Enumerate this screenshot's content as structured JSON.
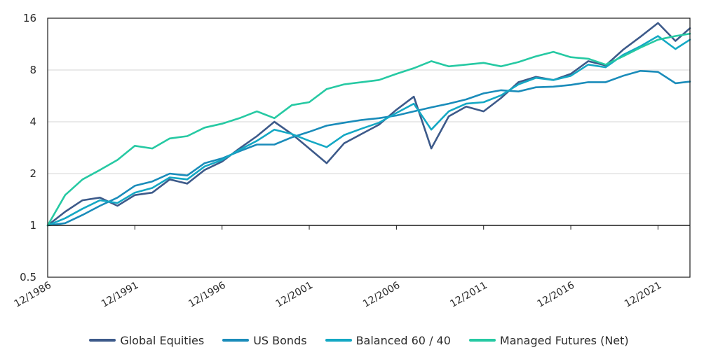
{
  "chart_data": {
    "type": "line",
    "title": "",
    "xlabel": "",
    "ylabel": "",
    "yscale": "log2",
    "ylim": [
      0.5,
      16
    ],
    "xlim": [
      "12/1986",
      "10/2023"
    ],
    "y_ticks": [
      "0.5",
      "1",
      "2",
      "4",
      "8",
      "16"
    ],
    "x_ticks": [
      "12/1986",
      "12/1991",
      "12/1996",
      "12/2001",
      "12/2006",
      "12/2011",
      "12/2016",
      "12/2021"
    ],
    "grid": "horizontal",
    "legend": "bottom",
    "x": [
      "12/1986",
      "12/1987",
      "12/1988",
      "12/1989",
      "12/1990",
      "12/1991",
      "12/1992",
      "12/1993",
      "12/1994",
      "12/1995",
      "12/1996",
      "12/1997",
      "12/1998",
      "12/1999",
      "12/2000",
      "12/2001",
      "12/2002",
      "12/2003",
      "12/2004",
      "12/2005",
      "12/2006",
      "12/2007",
      "12/2008",
      "12/2009",
      "12/2010",
      "12/2011",
      "12/2012",
      "12/2013",
      "12/2014",
      "12/2015",
      "12/2016",
      "12/2017",
      "12/2018",
      "12/2019",
      "12/2020",
      "12/2021",
      "12/2022",
      "10/2023"
    ],
    "series": [
      {
        "name": "Global Equities",
        "color": "#3d5a8a",
        "values": [
          1.0,
          1.2,
          1.4,
          1.45,
          1.3,
          1.5,
          1.55,
          1.85,
          1.75,
          2.1,
          2.35,
          2.8,
          3.3,
          4.0,
          3.4,
          2.8,
          2.3,
          3.0,
          3.4,
          3.85,
          4.7,
          5.6,
          2.8,
          4.3,
          4.9,
          4.6,
          5.5,
          6.8,
          7.3,
          7.0,
          7.6,
          9.0,
          8.5,
          10.5,
          12.5,
          15.0,
          11.8,
          14.0
        ]
      },
      {
        "name": "US Bonds",
        "color": "#1a8cba",
        "values": [
          1.0,
          1.03,
          1.15,
          1.3,
          1.45,
          1.7,
          1.8,
          2.0,
          1.95,
          2.3,
          2.45,
          2.7,
          2.95,
          2.95,
          3.25,
          3.5,
          3.8,
          3.95,
          4.1,
          4.2,
          4.35,
          4.6,
          4.85,
          5.1,
          5.4,
          5.85,
          6.1,
          6.0,
          6.35,
          6.4,
          6.55,
          6.8,
          6.8,
          7.4,
          7.9,
          7.8,
          6.7,
          6.85
        ]
      },
      {
        "name": "Balanced 60 / 40",
        "color": "#14a8c4",
        "values": [
          1.0,
          1.1,
          1.25,
          1.4,
          1.35,
          1.55,
          1.65,
          1.9,
          1.85,
          2.2,
          2.4,
          2.75,
          3.1,
          3.6,
          3.4,
          3.1,
          2.85,
          3.35,
          3.65,
          3.95,
          4.5,
          5.1,
          3.6,
          4.6,
          5.1,
          5.2,
          5.7,
          6.6,
          7.2,
          7.0,
          7.4,
          8.6,
          8.3,
          9.8,
          11.0,
          12.6,
          10.6,
          12.0
        ]
      },
      {
        "name": "Managed Futures (Net)",
        "color": "#26c9a3",
        "values": [
          1.0,
          1.5,
          1.85,
          2.1,
          2.4,
          2.9,
          2.8,
          3.2,
          3.3,
          3.7,
          3.9,
          4.2,
          4.6,
          4.2,
          5.0,
          5.2,
          6.2,
          6.6,
          6.8,
          7.0,
          7.6,
          8.2,
          9.0,
          8.4,
          8.6,
          8.8,
          8.4,
          8.9,
          9.6,
          10.2,
          9.5,
          9.3,
          8.6,
          9.6,
          10.8,
          12.0,
          12.6,
          13.0
        ]
      }
    ]
  }
}
